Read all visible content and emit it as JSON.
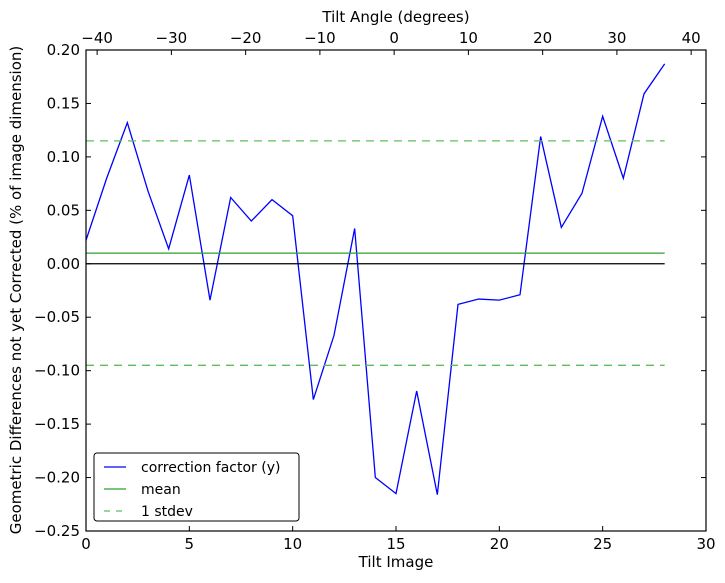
{
  "chart_data": {
    "type": "line",
    "xlabel": "Tilt Image",
    "ylabel": "Geometric Differences not yet Corrected (% of image dimension)",
    "top_xlabel": "Tilt Angle (degrees)",
    "xlim": [
      0,
      30
    ],
    "ylim": [
      -0.25,
      0.2
    ],
    "top_xlim": [
      -41.5,
      42
    ],
    "xticks": [
      0,
      5,
      10,
      15,
      20,
      25,
      30
    ],
    "xtick_labels": [
      "0",
      "5",
      "10",
      "15",
      "20",
      "25",
      "30"
    ],
    "yticks": [
      -0.25,
      -0.2,
      -0.15,
      -0.1,
      -0.05,
      0.0,
      0.05,
      0.1,
      0.15,
      0.2
    ],
    "ytick_labels": [
      "−0.25",
      "−0.20",
      "−0.15",
      "−0.10",
      "−0.05",
      "0.00",
      "0.05",
      "0.10",
      "0.15",
      "0.20"
    ],
    "top_xticks": [
      -40,
      -30,
      -20,
      -10,
      0,
      10,
      20,
      30,
      40
    ],
    "top_xtick_labels": [
      "−40",
      "−30",
      "−20",
      "−10",
      "0",
      "10",
      "20",
      "30",
      "40"
    ],
    "grid": false,
    "legend_position": "lower-left",
    "series": [
      {
        "name": "correction factor (y)",
        "color": "#0000ff",
        "style": "solid",
        "x": [
          0,
          1,
          2,
          3,
          4,
          5,
          6,
          7,
          8,
          9,
          10,
          11,
          12,
          13,
          14,
          15,
          16,
          17,
          18,
          19,
          20,
          21,
          22,
          23,
          24,
          25,
          26,
          27,
          28
        ],
        "values": [
          0.022,
          0.08,
          0.132,
          0.068,
          0.014,
          0.083,
          -0.034,
          0.062,
          0.04,
          0.06,
          0.045,
          -0.127,
          -0.067,
          0.033,
          -0.2,
          -0.215,
          -0.119,
          -0.216,
          -0.038,
          -0.033,
          -0.034,
          -0.029,
          0.119,
          0.034,
          0.066,
          0.138,
          0.08,
          0.159,
          0.187
        ]
      },
      {
        "name": "mean",
        "color": "#2ca02c",
        "style": "solid",
        "x": [
          0,
          28
        ],
        "values": [
          0.01,
          0.01
        ]
      },
      {
        "name": "1 stdev",
        "color": "#5cbf5c",
        "style": "dashed",
        "x": [
          0,
          28
        ],
        "values": [
          0.115,
          0.115
        ]
      },
      {
        "name": "",
        "color": "#5cbf5c",
        "style": "dashed",
        "x": [
          0,
          28
        ],
        "values": [
          -0.095,
          -0.095
        ]
      },
      {
        "name": "",
        "color": "#000000",
        "style": "solid",
        "x": [
          0,
          28
        ],
        "values": [
          0.0,
          0.0
        ]
      }
    ]
  }
}
